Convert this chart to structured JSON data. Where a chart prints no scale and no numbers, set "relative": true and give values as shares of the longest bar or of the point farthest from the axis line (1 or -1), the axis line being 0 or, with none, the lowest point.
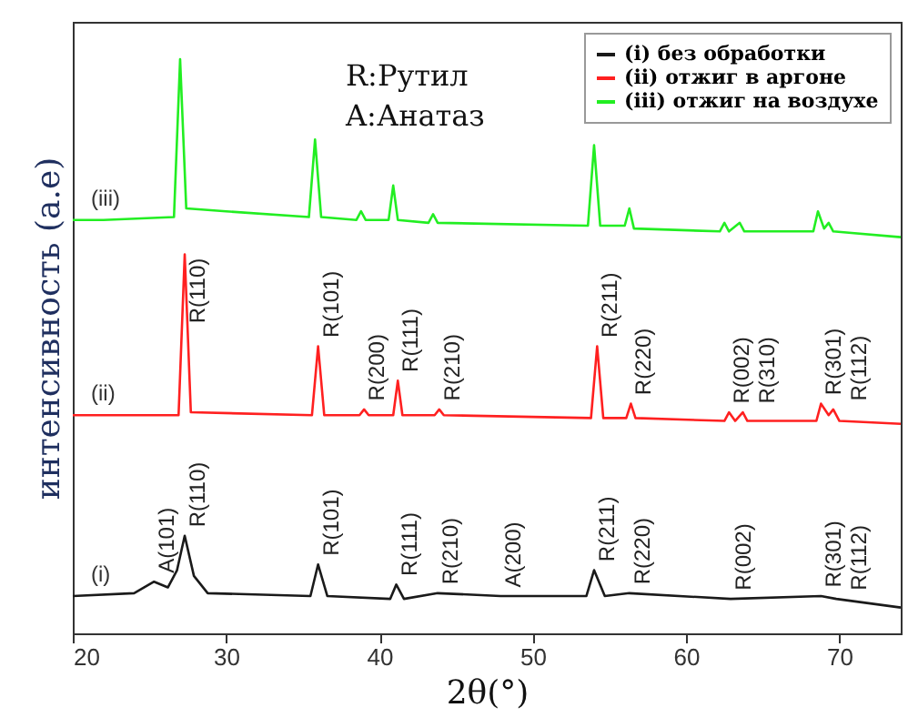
{
  "chart_data": {
    "type": "line",
    "relative": true,
    "xlabel": "2θ(°)",
    "ylabel": "интенсивность (a.e)",
    "xlim": [
      20,
      74
    ],
    "xticks": [
      20,
      30,
      40,
      50,
      60,
      70
    ],
    "tick_labels": "x",
    "legend": "top right",
    "series": [
      {
        "name": "(i) без обработки",
        "color": "#1a1a1a",
        "x": [
          20,
          24,
          25.3,
          26.2,
          26.8,
          27.3,
          27.9,
          28.8,
          35.5,
          36.0,
          36.6,
          40.7,
          41.1,
          41.6,
          43.8,
          47.9,
          53.5,
          54.0,
          54.7,
          56.3,
          62.9,
          68.8,
          69.8,
          74
        ],
        "values": [
          0.065,
          0.07,
          0.09,
          0.08,
          0.11,
          0.17,
          0.1,
          0.07,
          0.065,
          0.12,
          0.065,
          0.06,
          0.085,
          0.06,
          0.07,
          0.065,
          0.065,
          0.11,
          0.065,
          0.07,
          0.06,
          0.065,
          0.06,
          0.045
        ]
      },
      {
        "name": "(ii) отжиг в аргоне",
        "color": "#ff2020",
        "x": [
          20,
          26.9,
          27.3,
          27.7,
          35.6,
          36.0,
          36.4,
          38.7,
          39.0,
          39.3,
          40.9,
          41.2,
          41.5,
          43.6,
          43.9,
          44.2,
          53.8,
          54.2,
          54.6,
          56.1,
          56.4,
          56.7,
          62.5,
          62.8,
          63.2,
          63.7,
          64.0,
          68.5,
          68.8,
          69.3,
          69.6,
          70,
          74
        ],
        "values": [
          0.38,
          0.38,
          0.66,
          0.385,
          0.38,
          0.5,
          0.38,
          0.38,
          0.39,
          0.38,
          0.38,
          0.44,
          0.38,
          0.38,
          0.39,
          0.38,
          0.375,
          0.5,
          0.375,
          0.375,
          0.4,
          0.375,
          0.37,
          0.385,
          0.37,
          0.385,
          0.37,
          0.37,
          0.4,
          0.38,
          0.39,
          0.37,
          0.365
        ]
      },
      {
        "name": "(iii) отжиг на воздухе",
        "color": "#22ee22",
        "x": [
          20,
          22,
          26.6,
          27.0,
          27.4,
          30,
          35.4,
          35.8,
          36.2,
          38.5,
          38.8,
          39.1,
          40.6,
          40.9,
          41.2,
          43.2,
          43.5,
          43.8,
          53.6,
          54.0,
          54.4,
          56.0,
          56.3,
          56.6,
          62.2,
          62.5,
          62.8,
          63.5,
          63.8,
          68.3,
          68.6,
          69.0,
          69.3,
          69.6,
          74
        ],
        "values": [
          0.72,
          0.72,
          0.725,
          1.0,
          0.74,
          0.735,
          0.725,
          0.86,
          0.725,
          0.72,
          0.735,
          0.72,
          0.72,
          0.78,
          0.72,
          0.715,
          0.73,
          0.715,
          0.71,
          0.85,
          0.71,
          0.71,
          0.74,
          0.705,
          0.7,
          0.715,
          0.7,
          0.715,
          0.7,
          0.7,
          0.735,
          0.705,
          0.715,
          0.7,
          0.69
        ]
      }
    ],
    "annotations": [
      "R:Рутил",
      "A:Анатаз",
      "(i)",
      "(ii)",
      "(iii)",
      {
        "text": "R(110)",
        "x": 27.3,
        "y": 0.66
      },
      {
        "text": "R(101)",
        "x": 36.0,
        "y": 0.5
      },
      {
        "text": "R(200)",
        "x": 39.0,
        "y": 0.39
      },
      {
        "text": "R(111)",
        "x": 41.2,
        "y": 0.44
      },
      {
        "text": "R(210)",
        "x": 43.9,
        "y": 0.39
      },
      {
        "text": "R(211)",
        "x": 54.2,
        "y": 0.5
      },
      {
        "text": "R(220)",
        "x": 56.4,
        "y": 0.4
      },
      {
        "text": "R(002)",
        "x": 62.8,
        "y": 0.385
      },
      {
        "text": "R(310)",
        "x": 63.7,
        "y": 0.385
      },
      {
        "text": "R(301)",
        "x": 68.8,
        "y": 0.4
      },
      {
        "text": "R(112)",
        "x": 69.6,
        "y": 0.39
      },
      {
        "text": "A(101)",
        "x": 25.3,
        "y": 0.09
      },
      {
        "text": "R(110)",
        "x": 27.3,
        "y": 0.17
      },
      {
        "text": "R(101)",
        "x": 36.0,
        "y": 0.12
      },
      {
        "text": "R(111)",
        "x": 41.1,
        "y": 0.085
      },
      {
        "text": "R(210)",
        "x": 43.8,
        "y": 0.07
      },
      {
        "text": "A(200)",
        "x": 47.9,
        "y": 0.065
      },
      {
        "text": "R(211)",
        "x": 54.0,
        "y": 0.11
      },
      {
        "text": "R(220)",
        "x": 56.3,
        "y": 0.07
      },
      {
        "text": "R(002)",
        "x": 62.9,
        "y": 0.06
      },
      {
        "text": "R(301)",
        "x": 68.8,
        "y": 0.065
      },
      {
        "text": "R(112)",
        "x": 69.8,
        "y": 0.06
      }
    ]
  }
}
